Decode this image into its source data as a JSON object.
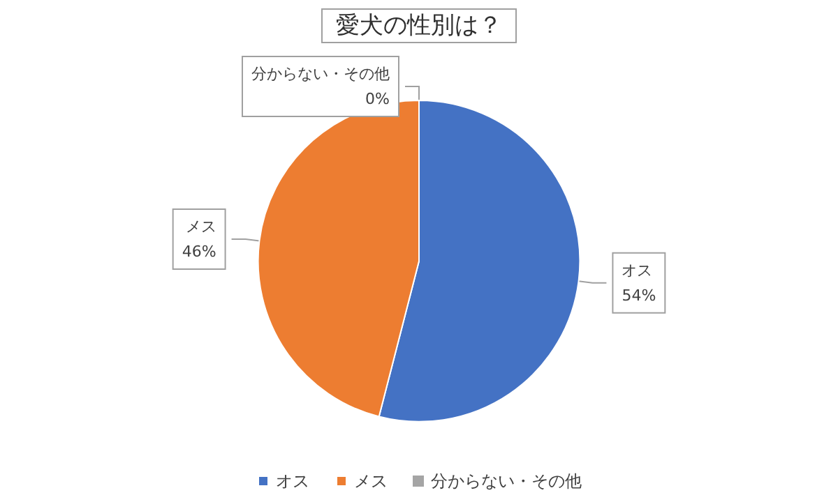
{
  "chart_data": {
    "type": "pie",
    "title": "愛犬の性別は？",
    "categories": [
      "オス",
      "メス",
      "分からない・その他"
    ],
    "values": [
      54,
      46,
      0
    ],
    "colors": [
      "#4472c4",
      "#ed7d31",
      "#a5a5a5"
    ],
    "value_labels": [
      "54%",
      "46%",
      "0%"
    ],
    "legend": "bottom"
  }
}
